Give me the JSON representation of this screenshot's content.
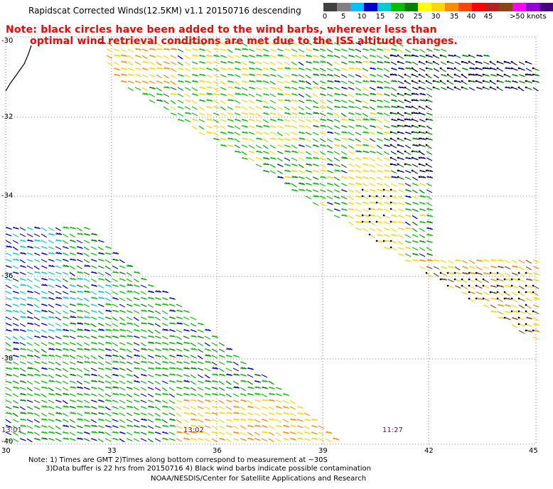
{
  "title": "Rapidscat Corrected Winds(12.5KM) v1.1 20150716 descending",
  "note_line1": "Note: black circles have been added to the wind barbs, wherever less than",
  "note_line2": "optimal wind retrieval conditions are met due to the ISS altitude changes.",
  "legend": {
    "unit_label": ">50 knots",
    "colors": [
      "#404040",
      "#808080",
      "#00bfff",
      "#0000cd",
      "#00cdcd",
      "#00c000",
      "#008000",
      "#ffff00",
      "#ffd700",
      "#ff8c00",
      "#ff4500",
      "#ff0000",
      "#b22222",
      "#8b4513",
      "#ff00ff",
      "#9400d3",
      "#4b0082"
    ],
    "ticks": [
      "0",
      "5",
      "10",
      "15",
      "20",
      "25",
      "30",
      "35",
      "40",
      "45",
      ">50 knots"
    ]
  },
  "axes": {
    "y_labels": [
      "-30",
      "-32",
      "-34",
      "-36",
      "-38",
      "-40"
    ],
    "x_labels": [
      "30",
      "33",
      "36",
      "39",
      "42",
      "45"
    ]
  },
  "time_labels": [
    {
      "text": "13:01",
      "color": "#800080"
    },
    {
      "text": "13:02",
      "color": "#800080"
    },
    {
      "text": "11:27",
      "color": "#800080"
    }
  ],
  "footer": {
    "line1": "Note: 1) Times are GMT 2)Times along bottom correspond to measurement at ~30S",
    "line2": "3)Data buffer is 22 hrs from 20150716 4) Black wind barbs indicate possible contamination",
    "line3": "NOAA/NESDIS/Center for Satellite Applications and Research"
  }
}
